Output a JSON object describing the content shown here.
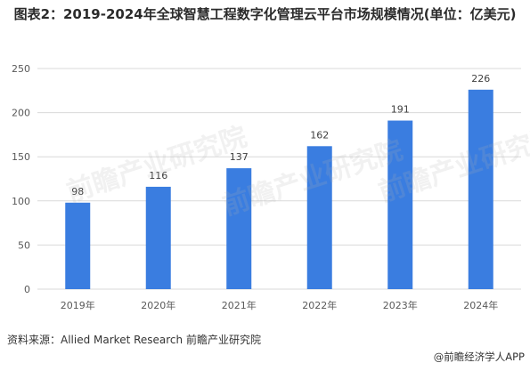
{
  "title": "图表2：2019-2024年全球智慧工程数字化管理云平台市场规模情况(单位：亿美元)",
  "source": "资料来源：Allied Market Research 前瞻产业研究院",
  "brand": "@前瞻经济学人APP",
  "watermark": "前瞻产业研究院",
  "colors": {
    "bar": "#3a7de0",
    "grid": "#d9d9d9",
    "axis_text": "#595959"
  },
  "chart_data": {
    "type": "bar",
    "categories": [
      "2019年",
      "2020年",
      "2021年",
      "2022年",
      "2023年",
      "2024年"
    ],
    "values": [
      98,
      116,
      137,
      162,
      191,
      226
    ],
    "title": "图表2：2019-2024年全球智慧工程数字化管理云平台市场规模情况(单位：亿美元)",
    "xlabel": "",
    "ylabel": "",
    "ylim": [
      0,
      250
    ],
    "yticks": [
      0,
      50,
      100,
      150,
      200,
      250
    ],
    "grid": true,
    "legend": "none"
  }
}
